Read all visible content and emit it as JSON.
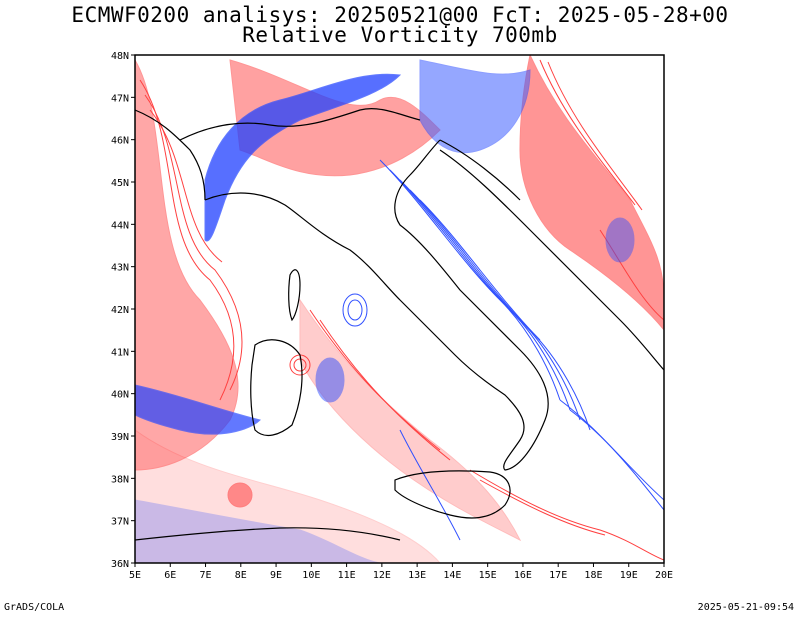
{
  "header": {
    "line1": "ECMWF0200 analisys: 20250521@00 FcT: 2025-05-28+00",
    "line2": "Relative Vorticity 700mb"
  },
  "footer": {
    "left": "GrADS/COLA",
    "right": "2025-05-21-09:54"
  },
  "map": {
    "projection": "lat-lon",
    "lon_range": [
      5,
      20
    ],
    "lat_range": [
      36,
      48
    ],
    "lon_ticks": [
      "5E",
      "6E",
      "7E",
      "8E",
      "9E",
      "10E",
      "11E",
      "12E",
      "13E",
      "14E",
      "15E",
      "16E",
      "17E",
      "18E",
      "19E",
      "20E"
    ],
    "lat_ticks": [
      "36N",
      "37N",
      "38N",
      "39N",
      "40N",
      "41N",
      "42N",
      "43N",
      "44N",
      "45N",
      "46N",
      "47N",
      "48N"
    ],
    "contour_colors": {
      "positive": "#ff4040",
      "negative": "#3050ff",
      "coast": "#000000"
    }
  }
}
